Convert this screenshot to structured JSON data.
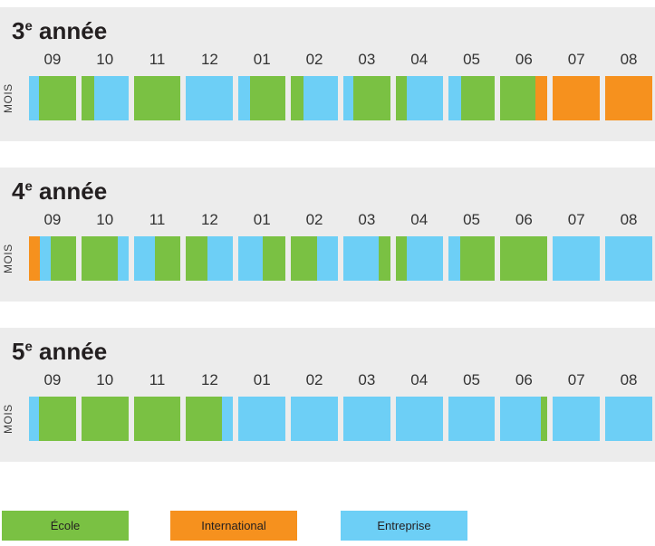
{
  "chart_data": {
    "type": "bar",
    "variant": "horizontal-month-timeline",
    "unit_label": "MOIS",
    "categories": [
      "09",
      "10",
      "11",
      "12",
      "01",
      "02",
      "03",
      "04",
      "05",
      "06",
      "07",
      "08"
    ],
    "legend_position": "bottom",
    "grid": false,
    "panel_background": "#ececec",
    "text_color": "#231f20",
    "legend": [
      {
        "key": "ecole",
        "label": "École",
        "color": "#7ac143"
      },
      {
        "key": "international",
        "label": "International",
        "color": "#f6911e"
      },
      {
        "key": "entreprise",
        "label": "Entreprise",
        "color": "#6dcff6"
      }
    ],
    "rows": [
      {
        "title_num": "3",
        "title_sup": "e",
        "title_rest": " année",
        "months": [
          [
            [
              "entreprise",
              0.22
            ],
            [
              "ecole",
              0.78
            ]
          ],
          [
            [
              "ecole",
              0.27
            ],
            [
              "entreprise",
              0.73
            ]
          ],
          [
            [
              "ecole",
              1
            ]
          ],
          [
            [
              "entreprise",
              1
            ]
          ],
          [
            [
              "entreprise",
              0.25
            ],
            [
              "ecole",
              0.75
            ]
          ],
          [
            [
              "ecole",
              0.27
            ],
            [
              "entreprise",
              0.73
            ]
          ],
          [
            [
              "entreprise",
              0.22
            ],
            [
              "ecole",
              0.78
            ]
          ],
          [
            [
              "ecole",
              0.23
            ],
            [
              "entreprise",
              0.77
            ]
          ],
          [
            [
              "entreprise",
              0.27
            ],
            [
              "ecole",
              0.73
            ]
          ],
          [
            [
              "ecole",
              0.75
            ],
            [
              "international",
              0.25
            ]
          ],
          [
            [
              "international",
              1
            ]
          ],
          [
            [
              "international",
              1
            ]
          ]
        ]
      },
      {
        "title_num": "4",
        "title_sup": "e",
        "title_rest": " année",
        "months": [
          [
            [
              "international",
              0.23
            ],
            [
              "entreprise",
              0.23
            ],
            [
              "ecole",
              0.54
            ]
          ],
          [
            [
              "ecole",
              0.77
            ],
            [
              "entreprise",
              0.23
            ]
          ],
          [
            [
              "entreprise",
              0.45
            ],
            [
              "ecole",
              0.55
            ]
          ],
          [
            [
              "ecole",
              0.46
            ],
            [
              "entreprise",
              0.54
            ]
          ],
          [
            [
              "entreprise",
              0.51
            ],
            [
              "ecole",
              0.49
            ]
          ],
          [
            [
              "ecole",
              0.55
            ],
            [
              "entreprise",
              0.45
            ]
          ],
          [
            [
              "entreprise",
              0.76
            ],
            [
              "ecole",
              0.24
            ]
          ],
          [
            [
              "ecole",
              0.23
            ],
            [
              "entreprise",
              0.77
            ]
          ],
          [
            [
              "entreprise",
              0.25
            ],
            [
              "ecole",
              0.75
            ]
          ],
          [
            [
              "ecole",
              1
            ]
          ],
          [
            [
              "entreprise",
              1
            ]
          ],
          [
            [
              "entreprise",
              1
            ]
          ]
        ]
      },
      {
        "title_num": "5",
        "title_sup": "e",
        "title_rest": " année",
        "months": [
          [
            [
              "entreprise",
              0.22
            ],
            [
              "ecole",
              0.78
            ]
          ],
          [
            [
              "ecole",
              1
            ]
          ],
          [
            [
              "ecole",
              1
            ]
          ],
          [
            [
              "ecole",
              0.76
            ],
            [
              "entreprise",
              0.24
            ]
          ],
          [
            [
              "entreprise",
              1
            ]
          ],
          [
            [
              "entreprise",
              1
            ]
          ],
          [
            [
              "entreprise",
              1
            ]
          ],
          [
            [
              "entreprise",
              1
            ]
          ],
          [
            [
              "entreprise",
              1
            ]
          ],
          [
            [
              "entreprise",
              0.86
            ],
            [
              "ecole",
              0.14
            ]
          ],
          [
            [
              "entreprise",
              1
            ]
          ],
          [
            [
              "entreprise",
              1
            ]
          ]
        ]
      }
    ]
  }
}
